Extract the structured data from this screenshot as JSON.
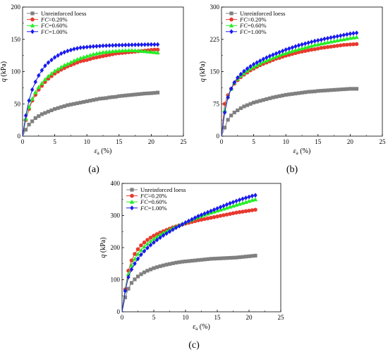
{
  "figure": {
    "panel_labels": [
      "(a)",
      "(b)",
      "(c)"
    ]
  },
  "chart_data": [
    {
      "type": "line",
      "panel": "(a)",
      "xlabel": "εa (%)",
      "xlabel_main": "ε",
      "xlabel_sub": "a",
      "xlabel_unit": " (%)",
      "ylabel": "q (kPa)",
      "ylabel_main": "q",
      "ylabel_unit": " (kPa)",
      "xlim": [
        0,
        25
      ],
      "ylim": [
        0,
        200
      ],
      "xticks": [
        0,
        5,
        10,
        15,
        20,
        25
      ],
      "yticks": [
        0,
        50,
        100,
        150,
        200
      ],
      "legend_position": "top-left",
      "x": [
        0,
        0.5,
        1,
        1.5,
        2,
        2.5,
        3,
        3.5,
        4,
        4.5,
        5,
        5.5,
        6,
        6.5,
        7,
        7.5,
        8,
        8.5,
        9,
        9.5,
        10,
        10.5,
        11,
        11.5,
        12,
        12.5,
        13,
        13.5,
        14,
        14.5,
        15,
        15.5,
        16,
        16.5,
        17,
        17.5,
        18,
        18.5,
        19,
        19.5,
        20,
        20.5,
        21
      ],
      "series": [
        {
          "name": "Unreinforced loess",
          "color": "#808080",
          "marker": "square",
          "values": [
            0,
            10,
            18,
            23,
            28,
            31,
            34,
            36,
            38,
            40,
            42,
            43.5,
            45,
            46.5,
            48,
            49,
            50,
            51,
            52,
            53,
            54,
            55,
            56,
            57,
            58,
            58.5,
            59,
            60,
            60.5,
            61,
            62,
            62.5,
            63,
            63.5,
            64,
            64.5,
            65,
            65.5,
            66,
            66.3,
            66.6,
            67,
            67.5
          ]
        },
        {
          "name": "FC=0.20%",
          "name_main": "FC",
          "name_rest": "=0.20%",
          "color": "#e8392e",
          "marker": "circle",
          "values": [
            0,
            25,
            42,
            55,
            64,
            72,
            78,
            84,
            89,
            93,
            97,
            100,
            103,
            105.5,
            108,
            110,
            112,
            114,
            116,
            117,
            118,
            119.5,
            121,
            122,
            123,
            124,
            125,
            126,
            127,
            128,
            128.5,
            129,
            129.5,
            130,
            130.5,
            131,
            131.5,
            132,
            132.5,
            133,
            133.5,
            134,
            134
          ]
        },
        {
          "name": "FC=0.60%",
          "name_main": "FC",
          "name_rest": "=0.60%",
          "color": "#22ee22",
          "marker": "triangle",
          "values": [
            0,
            27,
            45,
            58,
            68,
            76,
            82,
            88,
            93,
            97,
            101,
            104,
            107,
            110,
            112,
            114.5,
            117,
            119,
            121,
            122.5,
            124,
            125.5,
            127,
            128,
            129,
            130,
            130.5,
            131,
            131.5,
            132,
            132.3,
            132.6,
            132.8,
            133,
            133,
            132.8,
            132.5,
            132,
            131.5,
            131,
            130.5,
            130,
            129.5
          ]
        },
        {
          "name": "FC=1.00%",
          "name_main": "FC",
          "name_rest": "=1.00%",
          "color": "#1a1aee",
          "marker": "diamond",
          "values": [
            0,
            32,
            55,
            72,
            84,
            94,
            102,
            109,
            114,
            118,
            122,
            125,
            128,
            130,
            132,
            133.5,
            135,
            136,
            137,
            137.5,
            138,
            138.5,
            139,
            139.3,
            139.6,
            140,
            140.2,
            140.4,
            140.6,
            140.8,
            141,
            141,
            141.2,
            141.3,
            141.4,
            141.5,
            141.6,
            141.7,
            141.8,
            141.9,
            142,
            142,
            142
          ]
        }
      ]
    },
    {
      "type": "line",
      "panel": "(b)",
      "xlabel": "εa (%)",
      "xlabel_main": "ε",
      "xlabel_sub": "a",
      "xlabel_unit": " (%)",
      "ylabel": "q (kPa)",
      "ylabel_main": "q",
      "ylabel_unit": " (kPa)",
      "xlim": [
        0,
        25
      ],
      "ylim": [
        0,
        300
      ],
      "xticks": [
        0,
        5,
        10,
        15,
        20,
        25
      ],
      "yticks": [
        0,
        75,
        150,
        225,
        300
      ],
      "legend_position": "top-left",
      "x": [
        0,
        0.5,
        1,
        1.5,
        2,
        2.5,
        3,
        3.5,
        4,
        4.5,
        5,
        5.5,
        6,
        6.5,
        7,
        7.5,
        8,
        8.5,
        9,
        9.5,
        10,
        10.5,
        11,
        11.5,
        12,
        12.5,
        13,
        13.5,
        14,
        14.5,
        15,
        15.5,
        16,
        16.5,
        17,
        17.5,
        18,
        18.5,
        19,
        19.5,
        20,
        20.5,
        21
      ],
      "series": [
        {
          "name": "Unreinforced loess",
          "color": "#808080",
          "marker": "square",
          "values": [
            0,
            20,
            38,
            48,
            55,
            60,
            65,
            69,
            72,
            75,
            78,
            80,
            82,
            84,
            86,
            88,
            90,
            91.5,
            93,
            94.5,
            96,
            97,
            98,
            99,
            100,
            101,
            102,
            103,
            103.5,
            104,
            105,
            105.5,
            106,
            106.5,
            107,
            107.5,
            108,
            108.5,
            109,
            109.5,
            110,
            110,
            110
          ]
        },
        {
          "name": "FC=0.20%",
          "name_main": "FC",
          "name_rest": "=0.20%",
          "color": "#e8392e",
          "marker": "circle",
          "values": [
            0,
            75,
            95,
            110,
            122,
            130,
            137,
            143,
            148,
            153,
            157,
            161,
            165,
            168,
            171,
            174,
            177,
            180,
            182,
            184.5,
            187,
            189,
            191,
            193,
            195,
            196.5,
            198,
            199.5,
            201,
            202,
            203.5,
            205,
            206,
            207,
            208,
            209,
            210,
            211,
            212,
            212.5,
            213,
            213.5,
            214
          ]
        },
        {
          "name": "FC=0.60%",
          "name_main": "FC",
          "name_rest": "=0.60%",
          "color": "#22ee22",
          "marker": "triangle",
          "values": [
            0,
            60,
            92,
            110,
            124,
            133,
            140,
            146,
            152,
            157,
            161,
            165,
            169,
            173,
            176,
            179,
            182,
            185,
            188,
            191,
            193,
            195.5,
            198,
            200,
            202,
            204,
            206,
            208,
            210,
            212,
            213.5,
            215,
            216.5,
            218,
            219.5,
            221,
            222.5,
            224,
            225,
            226.5,
            228,
            229,
            230
          ]
        },
        {
          "name": "FC=1.00%",
          "name_main": "FC",
          "name_rest": "=1.00%",
          "color": "#1a1aee",
          "marker": "diamond",
          "values": [
            0,
            55,
            90,
            110,
            125,
            136,
            144,
            151,
            157,
            162,
            167,
            171,
            175,
            179,
            182.5,
            186,
            189,
            192,
            195,
            198,
            201,
            203.5,
            206,
            208.5,
            211,
            213,
            215,
            217,
            219,
            221,
            222.5,
            224,
            226,
            227.5,
            229,
            230.5,
            232,
            233.5,
            235,
            236.5,
            238,
            239,
            240
          ]
        }
      ]
    },
    {
      "type": "line",
      "panel": "(c)",
      "xlabel": "εa (%)",
      "xlabel_main": "ε",
      "xlabel_sub": "a",
      "xlabel_unit": " (%)",
      "ylabel": "q (kPa)",
      "ylabel_main": "q",
      "ylabel_unit": " (kPa)",
      "xlim": [
        0,
        25
      ],
      "ylim": [
        0,
        400
      ],
      "xticks": [
        0,
        5,
        10,
        15,
        20,
        25
      ],
      "yticks": [
        0,
        100,
        200,
        300,
        400
      ],
      "legend_position": "top-left",
      "x": [
        0,
        0.5,
        1,
        1.5,
        2,
        2.5,
        3,
        3.5,
        4,
        4.5,
        5,
        5.5,
        6,
        6.5,
        7,
        7.5,
        8,
        8.5,
        9,
        9.5,
        10,
        10.5,
        11,
        11.5,
        12,
        12.5,
        13,
        13.5,
        14,
        14.5,
        15,
        15.5,
        16,
        16.5,
        17,
        17.5,
        18,
        18.5,
        19,
        19.5,
        20,
        20.5,
        21
      ],
      "series": [
        {
          "name": "Unreinforced loess",
          "color": "#808080",
          "marker": "square",
          "values": [
            0,
            45,
            72,
            90,
            101,
            110,
            117,
            123,
            128,
            132,
            136,
            139,
            142,
            144.5,
            147,
            149,
            151,
            153,
            154.5,
            156,
            157,
            158,
            159,
            160,
            161,
            162,
            163,
            164,
            165,
            165.5,
            166,
            166.5,
            167,
            167.5,
            168,
            168.5,
            169,
            170,
            171,
            172,
            173,
            174,
            175
          ]
        },
        {
          "name": "FC=0.20%",
          "name_main": "FC",
          "name_rest": "=0.20%",
          "color": "#e8392e",
          "marker": "circle",
          "values": [
            0,
            70,
            128,
            160,
            180,
            195,
            207,
            216,
            224,
            231,
            237,
            242,
            247,
            251,
            255,
            259,
            263,
            266,
            269,
            272,
            275,
            277.5,
            280,
            282.5,
            285,
            287,
            289,
            291,
            293,
            295,
            297,
            299,
            301,
            303,
            305,
            307,
            309,
            310.5,
            312,
            313.5,
            315,
            316.5,
            318
          ]
        },
        {
          "name": "FC=0.60%",
          "name_main": "FC",
          "name_rest": "=0.60%",
          "color": "#22ee22",
          "marker": "triangle",
          "values": [
            0,
            68,
            118,
            145,
            165,
            180,
            192,
            203,
            212,
            220,
            227,
            234,
            240,
            246,
            251,
            256,
            261,
            266,
            270,
            274.5,
            279,
            283,
            287,
            291,
            295,
            298.5,
            302,
            305.5,
            309,
            312,
            315,
            318,
            321,
            324,
            327,
            330,
            333,
            336,
            339,
            342,
            345,
            348,
            350
          ]
        },
        {
          "name": "FC=1.00%",
          "name_main": "FC",
          "name_rest": "=1.00%",
          "color": "#1a1aee",
          "marker": "diamond",
          "values": [
            0,
            65,
            108,
            132,
            150,
            165,
            178,
            189,
            199,
            208,
            216,
            224,
            231,
            238,
            244,
            250,
            256,
            262,
            267,
            272.5,
            278,
            283,
            288,
            293,
            298,
            302,
            306,
            310,
            314,
            318,
            322,
            326,
            330,
            334,
            338,
            341.5,
            345,
            348.5,
            352,
            355,
            358,
            361,
            363
          ]
        }
      ]
    }
  ]
}
